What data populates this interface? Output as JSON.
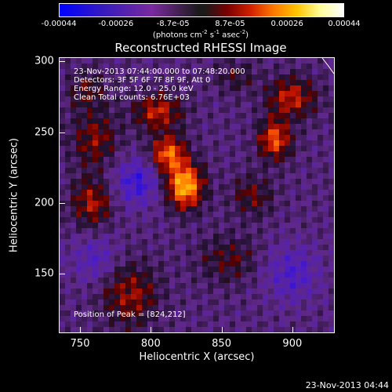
{
  "colorbar": {
    "ticks": [
      "-0.00044",
      "-0.00026",
      "-8.7e-05",
      "8.7e-05",
      "0.00026",
      "0.00044"
    ],
    "units_prefix": "(photons cm",
    "units_sup1": "-2",
    "units_mid": " s",
    "units_sup2": "-1",
    "units_mid2": " asec",
    "units_sup3": "-2",
    "units_suffix": ")"
  },
  "chart_data": {
    "type": "heatmap",
    "title": "Reconstructed RHESSI Image",
    "xlabel": "Heliocentric X (arcsec)",
    "ylabel": "Heliocentric Y (arcsec)",
    "xlim": [
      735,
      930
    ],
    "ylim": [
      108,
      303
    ],
    "xticks": [
      "750",
      "800",
      "850",
      "900"
    ],
    "yticks": [
      "150",
      "200",
      "250",
      "300"
    ],
    "clim": [
      -0.00044,
      0.00044
    ],
    "peak": [
      824,
      212
    ],
    "sources": [
      {
        "x": 824,
        "y": 212,
        "amp": 1.0,
        "sx": 9,
        "sy": 11
      },
      {
        "x": 812,
        "y": 235,
        "amp": 0.75,
        "sx": 9,
        "sy": 9
      },
      {
        "x": 805,
        "y": 265,
        "amp": 0.55,
        "sx": 12,
        "sy": 9
      },
      {
        "x": 888,
        "y": 245,
        "amp": 0.7,
        "sx": 8,
        "sy": 10
      },
      {
        "x": 900,
        "y": 275,
        "amp": 0.55,
        "sx": 12,
        "sy": 10
      },
      {
        "x": 758,
        "y": 200,
        "amp": 0.5,
        "sx": 10,
        "sy": 12
      },
      {
        "x": 760,
        "y": 245,
        "amp": 0.4,
        "sx": 12,
        "sy": 14
      },
      {
        "x": 785,
        "y": 135,
        "amp": 0.45,
        "sx": 14,
        "sy": 16
      },
      {
        "x": 855,
        "y": 160,
        "amp": 0.3,
        "sx": 15,
        "sy": 12
      },
      {
        "x": 872,
        "y": 205,
        "amp": 0.35,
        "sx": 10,
        "sy": 10
      },
      {
        "x": 755,
        "y": 280,
        "amp": 0.3,
        "sx": 10,
        "sy": 10
      },
      {
        "x": 860,
        "y": 290,
        "amp": 0.25,
        "sx": 10,
        "sy": 8
      },
      {
        "x": 790,
        "y": 215,
        "amp": -0.45,
        "sx": 12,
        "sy": 12
      },
      {
        "x": 760,
        "y": 160,
        "amp": -0.3,
        "sx": 12,
        "sy": 12
      },
      {
        "x": 900,
        "y": 150,
        "amp": -0.35,
        "sx": 14,
        "sy": 14
      }
    ]
  },
  "info": {
    "time": "23-Nov-2013 07:44:00.000 to 07:48:20.000",
    "detectors": "Detectors: 3F 5F 6F 7F 8F 9F, Att 0",
    "energy": "Energy Range: 12.0 - 25.0 keV",
    "method": "Clean     Total counts: 6.76E+03"
  },
  "peak_label": "Position of Peak = [824,212]",
  "timestamp": "23-Nov-2013 04:44"
}
